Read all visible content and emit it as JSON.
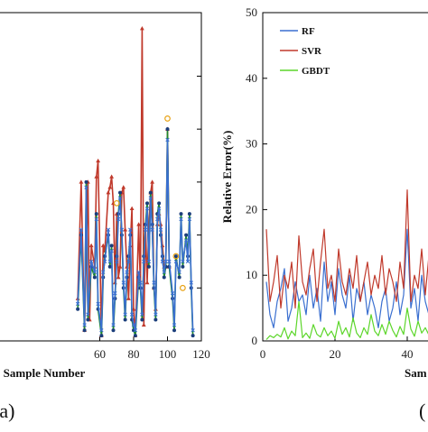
{
  "chart_data": [
    {
      "type": "line",
      "panel_label": "(a)",
      "xlabel": "Sample Number",
      "ylabel": "",
      "xlim": [
        0,
        120
      ],
      "xticks": [
        60,
        80,
        100,
        120
      ],
      "grid": false,
      "series": [
        {
          "name": "",
          "color": "#c0392b",
          "marker": "triangle",
          "x": [
            47,
            49,
            51,
            53,
            54,
            55,
            57,
            58,
            59,
            61,
            62,
            63,
            65,
            66,
            67,
            68,
            69,
            70,
            71,
            72,
            73,
            74,
            75,
            76,
            77,
            78,
            79,
            80,
            81,
            83,
            84,
            85,
            86,
            87,
            88,
            89,
            90,
            91,
            92,
            93,
            94,
            95,
            96,
            97,
            98,
            99,
            100,
            101
          ],
          "y": [
            8,
            30,
            2,
            30,
            4,
            18,
            14,
            31,
            34,
            1,
            18,
            17,
            28,
            29,
            31,
            26,
            11,
            24,
            12,
            14,
            28,
            29,
            21,
            14,
            8,
            18,
            25,
            6,
            1,
            22,
            10,
            59,
            3,
            22,
            11,
            22,
            28,
            30,
            10,
            6,
            22,
            24,
            22,
            18,
            14,
            14,
            40,
            14
          ]
        },
        {
          "name": "",
          "color": "#1f8a2e",
          "marker": "circle",
          "x": [
            47,
            49,
            51,
            52,
            53,
            55,
            57,
            58,
            59,
            61,
            62,
            63,
            65,
            66,
            67,
            68,
            69,
            70,
            71,
            72,
            73,
            74,
            75,
            76,
            77,
            78,
            79,
            80,
            81,
            83,
            84,
            85,
            86,
            87,
            88,
            89,
            90,
            91,
            92,
            93,
            94,
            95,
            96,
            97,
            98,
            99,
            100,
            101,
            103,
            104,
            105,
            107,
            108,
            109,
            111,
            112,
            113,
            114,
            115
          ],
          "y": [
            6,
            20,
            2,
            30,
            4,
            14,
            12,
            24,
            6,
            1,
            12,
            16,
            20,
            14,
            18,
            2,
            8,
            16,
            24,
            28,
            20,
            10,
            4,
            12,
            16,
            20,
            4,
            2,
            1,
            12,
            10,
            4,
            16,
            22,
            26,
            14,
            28,
            22,
            10,
            4,
            24,
            26,
            20,
            16,
            12,
            14,
            40,
            14,
            8,
            2,
            16,
            12,
            24,
            14,
            20,
            16,
            24,
            10,
            1
          ]
        },
        {
          "name": "",
          "color": "#3a6fd0",
          "marker": "x",
          "x": [
            47,
            49,
            51,
            52,
            53,
            55,
            57,
            58,
            59,
            61,
            62,
            63,
            65,
            66,
            67,
            68,
            69,
            70,
            71,
            72,
            73,
            74,
            75,
            76,
            77,
            78,
            79,
            80,
            81,
            83,
            84,
            85,
            86,
            87,
            88,
            89,
            90,
            91,
            92,
            93,
            94,
            95,
            96,
            97,
            98,
            99,
            100,
            101,
            103,
            104,
            105,
            107,
            108,
            109,
            111,
            112,
            113,
            114,
            115
          ],
          "y": [
            7,
            21,
            3,
            29,
            5,
            15,
            13,
            23,
            7,
            2,
            13,
            15,
            21,
            15,
            17,
            3,
            9,
            15,
            23,
            27,
            21,
            11,
            5,
            13,
            15,
            21,
            5,
            3,
            2,
            13,
            11,
            5,
            15,
            21,
            25,
            15,
            27,
            21,
            11,
            5,
            23,
            25,
            21,
            15,
            13,
            15,
            38,
            15,
            9,
            3,
            15,
            13,
            23,
            15,
            19,
            15,
            23,
            11,
            2
          ]
        },
        {
          "name": "",
          "color": "#e8a317",
          "marker": "circle-open",
          "x": [
            70,
            100,
            105,
            109
          ],
          "y": [
            26,
            42,
            16,
            10
          ]
        }
      ]
    },
    {
      "type": "line",
      "panel_label": "(",
      "xlabel": "Sam",
      "ylabel": "Relative Error(%)",
      "xlim": [
        0,
        50
      ],
      "ylim": [
        0,
        50
      ],
      "xticks": [
        0,
        20,
        40
      ],
      "yticks": [
        0,
        10,
        20,
        30,
        40,
        50
      ],
      "grid": false,
      "legend": "top-left",
      "series": [
        {
          "name": "RF",
          "color": "#3a6fd0",
          "x": [
            1,
            2,
            3,
            4,
            5,
            6,
            7,
            8,
            9,
            10,
            11,
            12,
            13,
            14,
            15,
            16,
            17,
            18,
            19,
            20,
            21,
            22,
            23,
            24,
            25,
            26,
            27,
            28,
            29,
            30,
            31,
            32,
            33,
            34,
            35,
            36,
            37,
            38,
            39,
            40,
            41,
            42,
            43,
            44,
            45,
            46,
            47,
            48,
            49,
            50
          ],
          "y": [
            9,
            4,
            2,
            6,
            8,
            11,
            3,
            5,
            9,
            6,
            7,
            4,
            10,
            5,
            8,
            3,
            12,
            6,
            9,
            4,
            11,
            7,
            5,
            10,
            3,
            8,
            6,
            9,
            4,
            7,
            5,
            2,
            6,
            8,
            3,
            5,
            9,
            4,
            7,
            17,
            5,
            8,
            3,
            10,
            6,
            4,
            8,
            2,
            5,
            3
          ]
        },
        {
          "name": "SVR",
          "color": "#c0392b",
          "x": [
            1,
            2,
            3,
            4,
            5,
            6,
            7,
            8,
            9,
            10,
            11,
            12,
            13,
            14,
            15,
            16,
            17,
            18,
            19,
            20,
            21,
            22,
            23,
            24,
            25,
            26,
            27,
            28,
            29,
            30,
            31,
            32,
            33,
            34,
            35,
            36,
            37,
            38,
            39,
            40,
            41,
            42,
            43,
            44,
            45,
            46,
            47,
            48,
            49,
            50
          ],
          "y": [
            17,
            6,
            9,
            13,
            5,
            10,
            8,
            12,
            5,
            16,
            9,
            7,
            11,
            14,
            6,
            12,
            17,
            8,
            10,
            6,
            14,
            9,
            7,
            11,
            8,
            13,
            6,
            9,
            12,
            7,
            10,
            8,
            13,
            7,
            11,
            9,
            6,
            12,
            8,
            23,
            6,
            10,
            8,
            14,
            7,
            13,
            9,
            11,
            6,
            5
          ]
        },
        {
          "name": "GBDT",
          "color": "#5cd62a",
          "x": [
            1,
            2,
            3,
            4,
            5,
            6,
            7,
            8,
            9,
            10,
            11,
            12,
            13,
            14,
            15,
            16,
            17,
            18,
            19,
            20,
            21,
            22,
            23,
            24,
            25,
            26,
            27,
            28,
            29,
            30,
            31,
            32,
            33,
            34,
            35,
            36,
            37,
            38,
            39,
            40,
            41,
            42,
            43,
            44,
            45,
            46,
            47,
            48,
            49,
            50
          ],
          "y": [
            0.2,
            0.8,
            0.5,
            1,
            0.6,
            2,
            0.3,
            1.5,
            0.8,
            6,
            0.5,
            1.2,
            0.4,
            2.5,
            1,
            0.6,
            2,
            0.8,
            1.5,
            0.4,
            3,
            1,
            2,
            0.6,
            3.5,
            1.2,
            0.5,
            2,
            1,
            4,
            1.5,
            0.8,
            2.5,
            1,
            3,
            1.6,
            0.6,
            2.2,
            1,
            5,
            1.8,
            0.7,
            3,
            1.2,
            2,
            0.9,
            3.5,
            1,
            2,
            0.5
          ]
        }
      ]
    }
  ]
}
